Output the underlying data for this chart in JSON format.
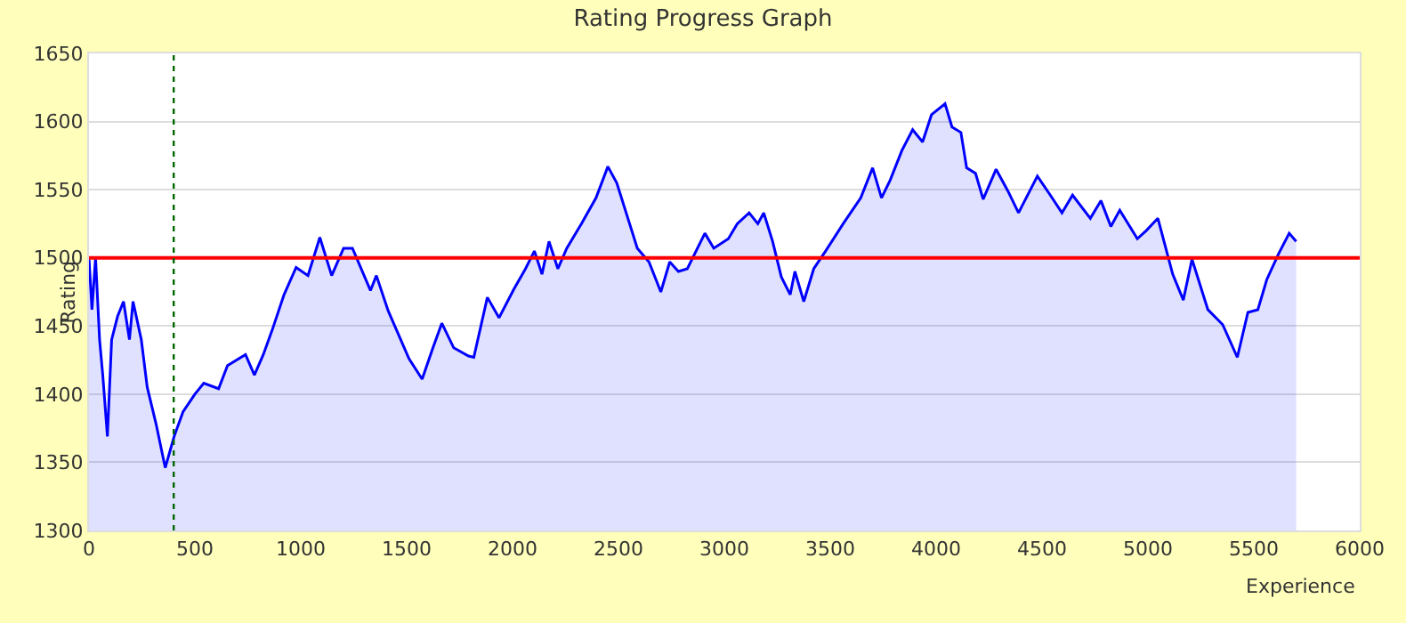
{
  "chart_data": {
    "type": "area",
    "title": "Rating Progress Graph",
    "xlabel": "Experience",
    "ylabel": "Rating",
    "x": [
      0,
      14,
      31,
      50,
      65,
      87,
      107,
      135,
      163,
      191,
      208,
      247,
      275,
      317,
      360,
      402,
      444,
      500,
      542,
      612,
      654,
      739,
      781,
      823,
      865,
      921,
      978,
      1034,
      1090,
      1146,
      1202,
      1244,
      1329,
      1357,
      1413,
      1511,
      1573,
      1624,
      1666,
      1722,
      1792,
      1817,
      1881,
      1936,
      2006,
      2061,
      2103,
      2139,
      2172,
      2214,
      2256,
      2325,
      2394,
      2450,
      2492,
      2589,
      2644,
      2700,
      2742,
      2783,
      2825,
      2908,
      2950,
      3019,
      3061,
      3117,
      3158,
      3186,
      3228,
      3269,
      3311,
      3333,
      3375,
      3422,
      3478,
      3561,
      3644,
      3700,
      3742,
      3783,
      3839,
      3889,
      3936,
      3978,
      4042,
      4075,
      4117,
      4144,
      4186,
      4222,
      4283,
      4339,
      4389,
      4478,
      4539,
      4594,
      4644,
      4728,
      4778,
      4825,
      4867,
      4950,
      4992,
      5047,
      5117,
      5167,
      5208,
      5283,
      5353,
      5422,
      5472,
      5519,
      5561,
      5617,
      5667,
      5700
    ],
    "series": [
      {
        "color": "#0000ff",
        "values": [
          1500,
          1462,
          1500,
          1440,
          1414,
          1369,
          1440,
          1457,
          1468,
          1440,
          1468,
          1440,
          1405,
          1378,
          1346,
          1369,
          1387,
          1400,
          1408,
          1404,
          1421,
          1429,
          1414,
          1429,
          1447,
          1473,
          1493,
          1487,
          1515,
          1487,
          1507,
          1507,
          1476,
          1487,
          1461,
          1426,
          1411,
          1434,
          1452,
          1434,
          1428,
          1427,
          1471,
          1456,
          1477,
          1492,
          1505,
          1488,
          1512,
          1492,
          1507,
          1525,
          1544,
          1567,
          1555,
          1507,
          1497,
          1475,
          1497,
          1490,
          1492,
          1518,
          1507,
          1514,
          1525,
          1533,
          1525,
          1533,
          1512,
          1486,
          1473,
          1490,
          1468,
          1492,
          1505,
          1525,
          1544,
          1566,
          1544,
          1557,
          1579,
          1594,
          1585,
          1605,
          1613,
          1596,
          1592,
          1566,
          1562,
          1543,
          1565,
          1549,
          1533,
          1560,
          1546,
          1533,
          1546,
          1529,
          1542,
          1523,
          1535,
          1514,
          1520,
          1529,
          1488,
          1469,
          1499,
          1462,
          1451,
          1427,
          1460,
          1462,
          1484,
          1503,
          1518,
          1512
        ]
      }
    ],
    "xlim": [
      0,
      6000
    ],
    "xticks": [
      0,
      500,
      1000,
      1500,
      2000,
      2500,
      3000,
      3500,
      4000,
      4500,
      5000,
      5500,
      6000
    ],
    "ylim": [
      1300,
      1650
    ],
    "yticks": [
      1300,
      1350,
      1400,
      1450,
      1500,
      1550,
      1600,
      1650
    ],
    "grid": "y",
    "legend": false,
    "ref_lines": [
      {
        "axis": "y",
        "value": 1500,
        "color": "#ff0000",
        "line_style": "solid"
      },
      {
        "axis": "x",
        "value": 400,
        "color": "#006600",
        "line_style": "dotted"
      }
    ]
  }
}
